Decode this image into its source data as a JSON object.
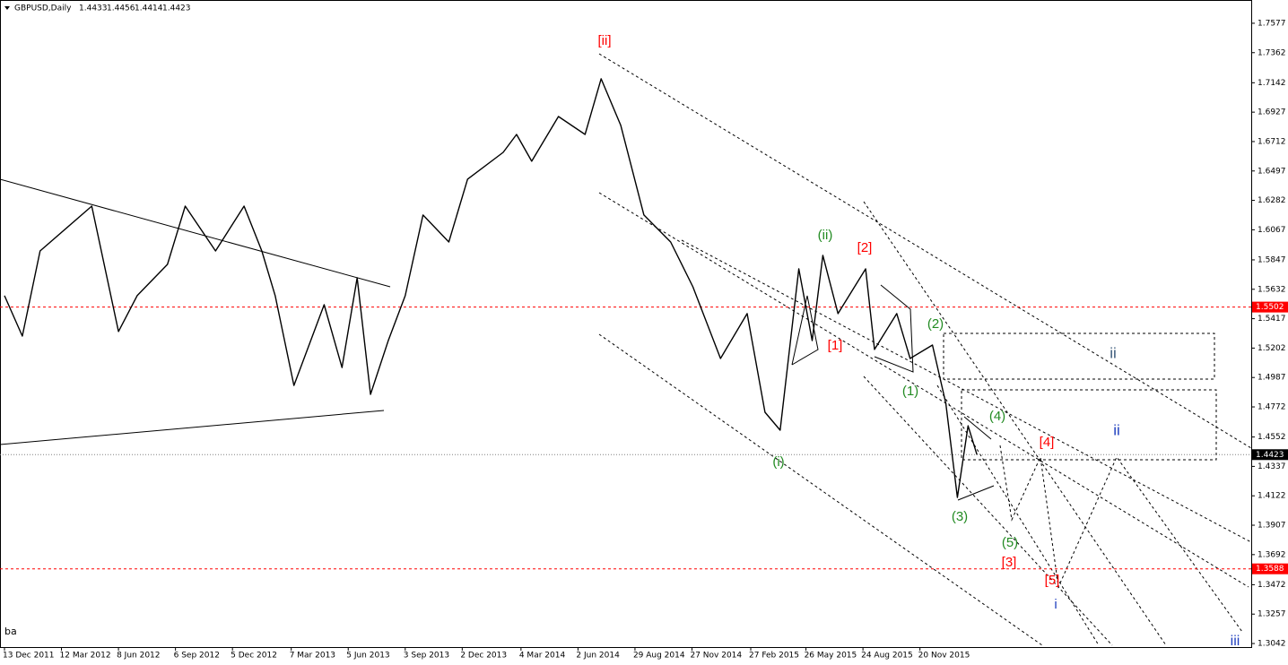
{
  "chart_data": {
    "type": "line",
    "title": "GBPUSD,Daily",
    "ohlc": [
      1.4433,
      1.4456,
      1.4414,
      1.4423
    ],
    "footnote": "ba",
    "color": "#000000",
    "x": [
      "2011-12-13",
      "2012-01-10",
      "2012-02-07",
      "2012-04-27",
      "2012-06-08",
      "2012-07-09",
      "2012-08-24",
      "2012-09-21",
      "2012-11-08",
      "2012-12-24",
      "2013-01-21",
      "2013-02-11",
      "2013-03-12",
      "2013-04-29",
      "2013-05-27",
      "2013-06-19",
      "2013-07-10",
      "2013-08-07",
      "2013-09-03",
      "2013-10-01",
      "2013-11-11",
      "2013-12-10",
      "2014-02-04",
      "2014-02-25",
      "2014-03-20",
      "2014-05-01",
      "2014-06-12",
      "2014-07-08",
      "2014-08-07",
      "2014-09-12",
      "2014-10-24",
      "2014-11-28",
      "2015-01-12",
      "2015-02-23",
      "2015-03-23",
      "2015-04-15",
      "2015-05-14",
      "2015-06-04",
      "2015-06-22",
      "2015-07-15",
      "2015-08-27",
      "2015-09-10",
      "2015-10-15",
      "2015-11-05",
      "2015-12-10",
      "2015-12-31",
      "2016-01-19",
      "2016-02-04",
      "2016-02-18"
    ],
    "values": [
      1.5585,
      1.529,
      1.5912,
      1.624,
      1.5323,
      1.5585,
      1.5814,
      1.624,
      1.5912,
      1.624,
      1.5912,
      1.5585,
      1.4929,
      1.5519,
      1.506,
      1.5716,
      1.4864,
      1.5257,
      1.5585,
      1.6175,
      1.5978,
      1.6437,
      1.6633,
      1.6764,
      1.6568,
      1.6895,
      1.6764,
      1.7171,
      1.683,
      1.6175,
      1.5978,
      1.565,
      1.5126,
      1.5454,
      1.4733,
      1.4602,
      1.5781,
      1.5257,
      1.588,
      1.5454,
      1.5781,
      1.5192,
      1.5454,
      1.5126,
      1.5224,
      1.4798,
      1.411,
      1.4634,
      1.4423
    ],
    "xlim": [
      "2011-12-13",
      "2017-04-25"
    ],
    "xticks": [
      {
        "value": "2011-12-13",
        "label": "13 Dec 2011"
      },
      {
        "value": "2012-03-12",
        "label": "12 Mar 2012"
      },
      {
        "value": "2012-06-08",
        "label": "8 Jun 2012"
      },
      {
        "value": "2012-09-06",
        "label": "6 Sep 2012"
      },
      {
        "value": "2012-12-05",
        "label": "5 Dec 2012"
      },
      {
        "value": "2013-03-07",
        "label": "7 Mar 2013"
      },
      {
        "value": "2013-06-05",
        "label": "5 Jun 2013"
      },
      {
        "value": "2013-09-03",
        "label": "3 Sep 2013"
      },
      {
        "value": "2013-12-02",
        "label": "2 Dec 2013"
      },
      {
        "value": "2014-03-04",
        "label": "4 Mar 2014"
      },
      {
        "value": "2014-06-02",
        "label": "2 Jun 2014"
      },
      {
        "value": "2014-08-29",
        "label": "29 Aug 2014"
      },
      {
        "value": "2014-11-27",
        "label": "27 Nov 2014"
      },
      {
        "value": "2015-02-27",
        "label": "27 Feb 2015"
      },
      {
        "value": "2015-05-26",
        "label": "26 May 2015"
      },
      {
        "value": "2015-08-24",
        "label": "24 Aug 2015"
      },
      {
        "value": "2015-11-20",
        "label": "20 Nov 2015"
      }
    ],
    "ylim": [
      1.3016,
      1.7747
    ],
    "yticks": [
      1.7577,
      1.7362,
      1.7142,
      1.6927,
      1.6712,
      1.6497,
      1.6282,
      1.6067,
      1.5847,
      1.5632,
      1.5417,
      1.5202,
      1.4987,
      1.4772,
      1.4552,
      1.4337,
      1.4122,
      1.3907,
      1.3692,
      1.3472,
      1.3257,
      1.3042
    ],
    "levels": [
      {
        "value": 1.5502,
        "color": "#ff0000",
        "label_color": "#ff0000"
      },
      {
        "value": 1.4423,
        "color": "#808080",
        "label_color": "#000000"
      },
      {
        "value": 1.3588,
        "color": "#ff0000",
        "label_color": "#ff0000"
      }
    ],
    "annotations": [
      {
        "text": "[ii]",
        "color": "#ff0000"
      },
      {
        "text": "(ii)",
        "color": "#228b22"
      },
      {
        "text": "[2]",
        "color": "#ff0000"
      },
      {
        "text": "[1]",
        "color": "#ff0000"
      },
      {
        "text": "(2)",
        "color": "#228b22"
      },
      {
        "text": "(1)",
        "color": "#228b22"
      },
      {
        "text": "(4)",
        "color": "#228b22"
      },
      {
        "text": "[4]",
        "color": "#ff0000"
      },
      {
        "text": "ii",
        "color": "#1f3fbf"
      },
      {
        "text": "ii",
        "color": "#3b5a7a"
      },
      {
        "text": "(i)",
        "color": "#228b22"
      },
      {
        "text": "(3)",
        "color": "#228b22"
      },
      {
        "text": "(5)",
        "color": "#228b22"
      },
      {
        "text": "[3]",
        "color": "#ff0000"
      },
      {
        "text": "[5]",
        "color": "#ff0000"
      },
      {
        "text": "i",
        "color": "#1f3fbf"
      },
      {
        "text": "iii",
        "color": "#1f3fbf"
      }
    ]
  }
}
